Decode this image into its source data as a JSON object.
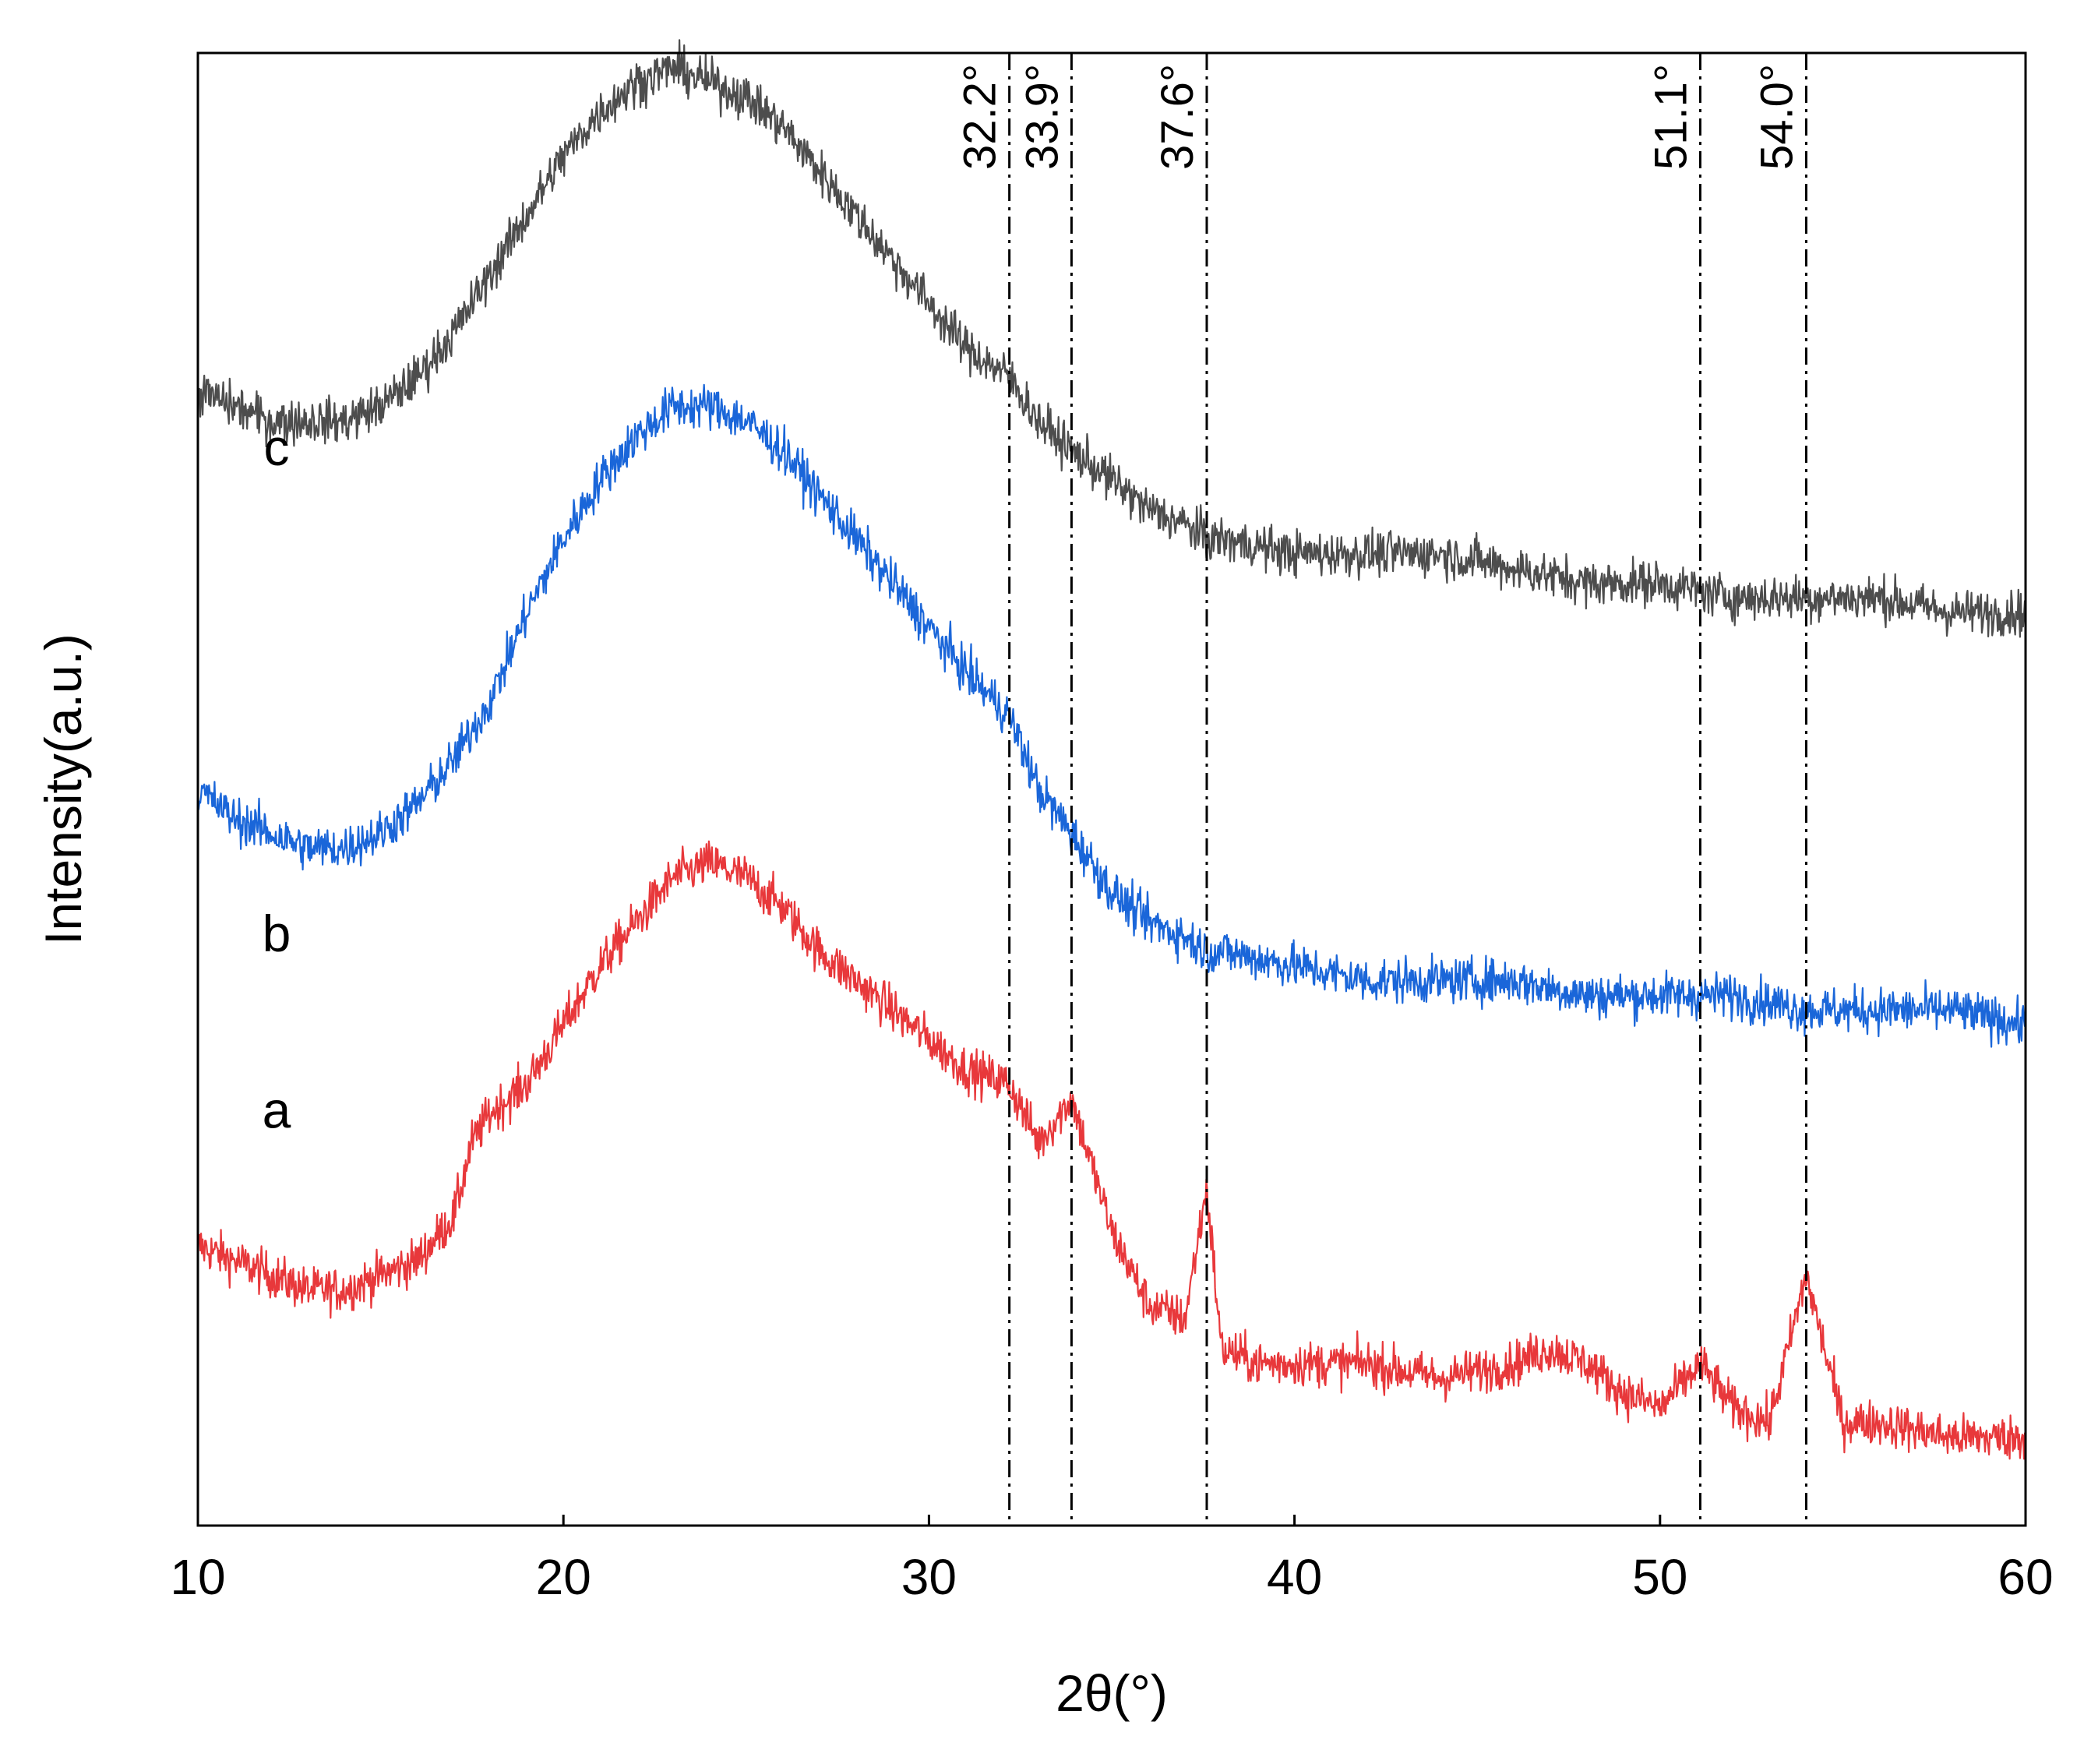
{
  "chart_data": {
    "type": "line",
    "title": "",
    "xlabel": "2θ(°)",
    "ylabel": "Intensity(a.u.)",
    "xlim": [
      10,
      60
    ],
    "ylim": [
      0,
      100
    ],
    "xticks": [
      10,
      20,
      30,
      40,
      50,
      60
    ],
    "xtick_labels": [
      "10",
      "20",
      "30",
      "40",
      "50",
      "60"
    ],
    "grid": false,
    "legend": "none (series labeled inline at left: a, b, c)",
    "reference_lines": [
      {
        "x": 32.2,
        "label": "32.2°"
      },
      {
        "x": 33.9,
        "label": "33.9°"
      },
      {
        "x": 37.6,
        "label": "37.6°"
      },
      {
        "x": 51.1,
        "label": "51.1°"
      },
      {
        "x": 54.0,
        "label": "54.0°"
      }
    ],
    "series": [
      {
        "name": "a",
        "color": "#e8383b",
        "x": [
          10,
          11,
          12,
          13,
          14,
          15,
          16,
          17,
          17.5,
          18,
          19,
          20,
          21,
          22,
          23,
          24,
          25,
          26,
          27,
          28,
          29,
          30,
          31,
          32.2,
          33,
          33.9,
          35,
          36,
          37,
          37.6,
          38,
          39,
          40,
          42,
          44,
          46,
          47,
          48,
          49,
          50,
          51.1,
          52,
          53,
          54.0,
          55,
          56,
          58,
          60
        ],
        "values": [
          19,
          18,
          17,
          16,
          16,
          17,
          18,
          21,
          26,
          28,
          30,
          34,
          38,
          41,
          44,
          45,
          44,
          42,
          39,
          37,
          35,
          33,
          31,
          30,
          26,
          29,
          20,
          15,
          14,
          23,
          12,
          11,
          11,
          11,
          10,
          11,
          12,
          11,
          9,
          8,
          11,
          8,
          7,
          17,
          7,
          7,
          6,
          6
        ]
      },
      {
        "name": "b",
        "color": "#1a66d9",
        "x": [
          10,
          11,
          12,
          13,
          14,
          15,
          16,
          17,
          18,
          19,
          20,
          21,
          22,
          23,
          24,
          25,
          26,
          27,
          28,
          29,
          30,
          31,
          32.2,
          33,
          33.9,
          35,
          36,
          37,
          37.6,
          38,
          40,
          42,
          44,
          46,
          48,
          50,
          52,
          54,
          56,
          58,
          60
        ],
        "values": [
          50,
          48,
          47,
          46,
          46,
          47,
          49,
          52,
          56,
          62,
          67,
          71,
          74,
          76,
          76,
          75,
          73,
          70,
          67,
          64,
          61,
          58,
          55,
          50,
          47,
          43,
          41,
          40,
          39,
          39,
          38,
          37,
          37,
          37,
          36,
          36,
          36,
          35,
          35,
          35,
          34
        ]
      },
      {
        "name": "c",
        "color": "#4d4d4d",
        "x": [
          10,
          11,
          12,
          13,
          14,
          15,
          16,
          17,
          18,
          19,
          20,
          21,
          22,
          23,
          24,
          25,
          26,
          27,
          28,
          29,
          30,
          31,
          32.2,
          33,
          33.9,
          35,
          36,
          37,
          37.6,
          38,
          40,
          42,
          44,
          46,
          48,
          50,
          52,
          54,
          56,
          58,
          60
        ],
        "values": [
          77,
          76,
          75,
          75,
          75,
          76,
          78,
          81,
          85,
          89,
          93,
          96,
          98,
          99,
          98,
          97,
          95,
          92,
          89,
          86,
          83,
          80,
          78,
          75,
          73,
          71,
          69,
          68,
          67,
          67,
          66,
          66,
          66,
          65,
          64,
          64,
          63,
          63,
          63,
          62,
          62
        ]
      }
    ]
  }
}
